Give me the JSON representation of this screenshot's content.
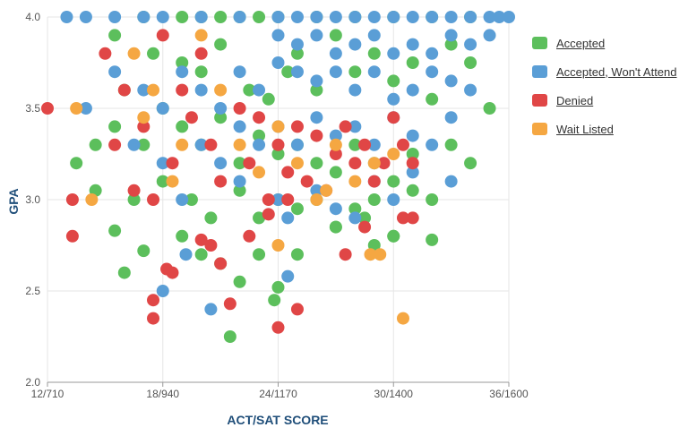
{
  "chart_data": {
    "type": "scatter",
    "xlabel": "ACT/SAT SCORE",
    "ylabel": "GPA",
    "x_ticks": [
      "12/710",
      "18/940",
      "24/1170",
      "30/1400",
      "36/1600"
    ],
    "y_ticks": [
      "2.0",
      "2.5",
      "3.0",
      "3.5",
      "4.0"
    ],
    "xlim": [
      12,
      36
    ],
    "ylim": [
      2.0,
      4.0
    ],
    "legend_position": "right",
    "series": [
      {
        "name": "Accepted",
        "color": "#5cbf5c",
        "points": [
          [
            17,
            4.0
          ],
          [
            19,
            4.0
          ],
          [
            20,
            4.0
          ],
          [
            21,
            4.0
          ],
          [
            22,
            4.0
          ],
          [
            23,
            4.0
          ],
          [
            24,
            4.0
          ],
          [
            26,
            4.0
          ],
          [
            28,
            4.0
          ],
          [
            30,
            4.0
          ],
          [
            32,
            4.0
          ],
          [
            34,
            4.0
          ],
          [
            15.5,
            3.9
          ],
          [
            17.5,
            3.8
          ],
          [
            19,
            3.75
          ],
          [
            20,
            3.7
          ],
          [
            21,
            3.85
          ],
          [
            22.5,
            3.6
          ],
          [
            23.5,
            3.55
          ],
          [
            24.5,
            3.7
          ],
          [
            25,
            3.8
          ],
          [
            26,
            3.6
          ],
          [
            27,
            3.9
          ],
          [
            28,
            3.7
          ],
          [
            29,
            3.8
          ],
          [
            30,
            3.65
          ],
          [
            31,
            3.75
          ],
          [
            32,
            3.55
          ],
          [
            33,
            3.85
          ],
          [
            34,
            3.75
          ],
          [
            35,
            3.5
          ],
          [
            14.5,
            3.3
          ],
          [
            15.5,
            3.4
          ],
          [
            16,
            3.6
          ],
          [
            17,
            3.3
          ],
          [
            18,
            3.5
          ],
          [
            19,
            3.4
          ],
          [
            20,
            3.3
          ],
          [
            21,
            3.45
          ],
          [
            22,
            3.2
          ],
          [
            23,
            3.35
          ],
          [
            24,
            3.25
          ],
          [
            25,
            3.3
          ],
          [
            26,
            3.2
          ],
          [
            27,
            3.15
          ],
          [
            28,
            3.3
          ],
          [
            29,
            3.2
          ],
          [
            30,
            3.1
          ],
          [
            31,
            3.25
          ],
          [
            32,
            3.0
          ],
          [
            33,
            3.3
          ],
          [
            34,
            3.2
          ],
          [
            13.5,
            3.2
          ],
          [
            14.5,
            3.05
          ],
          [
            16.5,
            3.0
          ],
          [
            18,
            3.1
          ],
          [
            19.5,
            3.0
          ],
          [
            20.5,
            2.9
          ],
          [
            22,
            3.05
          ],
          [
            23,
            2.9
          ],
          [
            24,
            3.0
          ],
          [
            25,
            2.95
          ],
          [
            26,
            3.0
          ],
          [
            27,
            2.85
          ],
          [
            28,
            2.95
          ],
          [
            29,
            3.0
          ],
          [
            30,
            2.8
          ],
          [
            31,
            3.05
          ],
          [
            32,
            2.78
          ],
          [
            15.5,
            2.83
          ],
          [
            17,
            2.72
          ],
          [
            19,
            2.8
          ],
          [
            20,
            2.7
          ],
          [
            21,
            2.65
          ],
          [
            22,
            2.55
          ],
          [
            23,
            2.7
          ],
          [
            24,
            2.52
          ],
          [
            25,
            2.7
          ],
          [
            27,
            2.85
          ],
          [
            29,
            2.75
          ],
          [
            30,
            2.8
          ],
          [
            16,
            2.6
          ],
          [
            21.5,
            2.25
          ],
          [
            23.8,
            2.45
          ],
          [
            28.5,
            2.9
          ]
        ]
      },
      {
        "name": "Accepted, Won't Attend",
        "color": "#5a9ed6",
        "points": [
          [
            13,
            4.0
          ],
          [
            14,
            4.0
          ],
          [
            15.5,
            4.0
          ],
          [
            17,
            4.0
          ],
          [
            18,
            4.0
          ],
          [
            20,
            4.0
          ],
          [
            22,
            4.0
          ],
          [
            24,
            4.0
          ],
          [
            25,
            4.0
          ],
          [
            26,
            4.0
          ],
          [
            27,
            4.0
          ],
          [
            28,
            4.0
          ],
          [
            29,
            4.0
          ],
          [
            30,
            4.0
          ],
          [
            31,
            4.0
          ],
          [
            32,
            4.0
          ],
          [
            33,
            4.0
          ],
          [
            34,
            4.0
          ],
          [
            35,
            4.0
          ],
          [
            35.5,
            4.0
          ],
          [
            36,
            4.0
          ],
          [
            24,
            3.9
          ],
          [
            25,
            3.85
          ],
          [
            26,
            3.9
          ],
          [
            27,
            3.8
          ],
          [
            28,
            3.85
          ],
          [
            29,
            3.9
          ],
          [
            30,
            3.8
          ],
          [
            31,
            3.85
          ],
          [
            32,
            3.8
          ],
          [
            33,
            3.9
          ],
          [
            34,
            3.85
          ],
          [
            35,
            3.9
          ],
          [
            15.5,
            3.7
          ],
          [
            17,
            3.6
          ],
          [
            18,
            3.5
          ],
          [
            19,
            3.7
          ],
          [
            20,
            3.6
          ],
          [
            21,
            3.5
          ],
          [
            22,
            3.7
          ],
          [
            23,
            3.6
          ],
          [
            24,
            3.75
          ],
          [
            25,
            3.7
          ],
          [
            26,
            3.65
          ],
          [
            27,
            3.7
          ],
          [
            28,
            3.6
          ],
          [
            29,
            3.7
          ],
          [
            30,
            3.55
          ],
          [
            31,
            3.6
          ],
          [
            32,
            3.7
          ],
          [
            33,
            3.65
          ],
          [
            34,
            3.6
          ],
          [
            20,
            3.3
          ],
          [
            21,
            3.2
          ],
          [
            22,
            3.4
          ],
          [
            23,
            3.3
          ],
          [
            24,
            3.4
          ],
          [
            25,
            3.3
          ],
          [
            26,
            3.45
          ],
          [
            27,
            3.35
          ],
          [
            28,
            3.4
          ],
          [
            29,
            3.3
          ],
          [
            30,
            3.45
          ],
          [
            31,
            3.35
          ],
          [
            32,
            3.3
          ],
          [
            33,
            3.45
          ],
          [
            18,
            3.2
          ],
          [
            19,
            3.0
          ],
          [
            22,
            3.1
          ],
          [
            24,
            3.0
          ],
          [
            26,
            3.05
          ],
          [
            27,
            2.95
          ],
          [
            28,
            2.9
          ],
          [
            29,
            3.1
          ],
          [
            30,
            3.0
          ],
          [
            31,
            3.15
          ],
          [
            33,
            3.1
          ],
          [
            14,
            3.5
          ],
          [
            16.5,
            3.3
          ],
          [
            18,
            2.5
          ],
          [
            19.2,
            2.7
          ],
          [
            20.5,
            2.4
          ],
          [
            24.5,
            2.58
          ],
          [
            24.5,
            2.9
          ]
        ]
      },
      {
        "name": "Denied",
        "color": "#e04646",
        "points": [
          [
            12,
            3.5
          ],
          [
            13.3,
            3.0
          ],
          [
            13.3,
            2.8
          ],
          [
            15,
            3.8
          ],
          [
            15.5,
            3.3
          ],
          [
            16,
            3.6
          ],
          [
            17,
            3.4
          ],
          [
            17.5,
            3.0
          ],
          [
            18,
            3.9
          ],
          [
            18.5,
            3.2
          ],
          [
            19,
            3.6
          ],
          [
            19.5,
            3.45
          ],
          [
            20,
            3.8
          ],
          [
            20.5,
            3.3
          ],
          [
            21,
            3.1
          ],
          [
            22,
            3.5
          ],
          [
            22.5,
            3.2
          ],
          [
            23,
            3.45
          ],
          [
            23.5,
            3.0
          ],
          [
            24,
            3.3
          ],
          [
            24.5,
            3.15
          ],
          [
            25,
            3.4
          ],
          [
            25.5,
            3.1
          ],
          [
            26,
            3.35
          ],
          [
            26.5,
            3.05
          ],
          [
            27,
            3.25
          ],
          [
            27.5,
            3.4
          ],
          [
            28,
            3.2
          ],
          [
            28.5,
            3.3
          ],
          [
            29,
            3.1
          ],
          [
            29.5,
            3.2
          ],
          [
            30,
            3.45
          ],
          [
            30.5,
            3.3
          ],
          [
            31,
            3.2
          ],
          [
            16.5,
            3.05
          ],
          [
            17.5,
            2.45
          ],
          [
            17.5,
            2.35
          ],
          [
            18.2,
            2.62
          ],
          [
            18.5,
            2.6
          ],
          [
            20,
            2.78
          ],
          [
            20.5,
            2.75
          ],
          [
            21,
            2.65
          ],
          [
            21.5,
            2.43
          ],
          [
            22.5,
            2.8
          ],
          [
            23.5,
            2.92
          ],
          [
            24,
            2.3
          ],
          [
            24.5,
            3.0
          ],
          [
            25,
            2.4
          ],
          [
            27.5,
            2.7
          ],
          [
            30.5,
            2.9
          ],
          [
            31,
            2.9
          ],
          [
            28.5,
            2.85
          ]
        ]
      },
      {
        "name": "Wait Listed",
        "color": "#f5a742",
        "points": [
          [
            13.5,
            3.5
          ],
          [
            14.3,
            3.0
          ],
          [
            16.5,
            3.8
          ],
          [
            17,
            3.45
          ],
          [
            18.5,
            3.1
          ],
          [
            20,
            3.9
          ],
          [
            21,
            3.6
          ],
          [
            22,
            3.3
          ],
          [
            24,
            3.4
          ],
          [
            25,
            3.2
          ],
          [
            26,
            3.0
          ],
          [
            27,
            3.3
          ],
          [
            28,
            3.1
          ],
          [
            29,
            3.2
          ],
          [
            30,
            3.25
          ],
          [
            24,
            2.75
          ],
          [
            28.8,
            2.7
          ],
          [
            29.3,
            2.7
          ],
          [
            30.5,
            2.35
          ],
          [
            26.5,
            3.05
          ],
          [
            17.5,
            3.6
          ],
          [
            19,
            3.3
          ],
          [
            23,
            3.15
          ]
        ]
      }
    ]
  }
}
